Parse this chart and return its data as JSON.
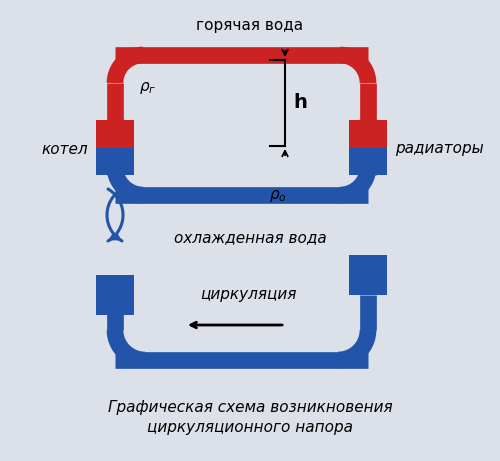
{
  "bg_color": "#dce0e8",
  "red_color": "#cc2222",
  "blue_color": "#2255aa",
  "line_width": 12,
  "title_line1": "Графическая схема возникновения",
  "title_line2": "циркуляционного напора",
  "label_hot": "горячая вода",
  "label_cold": "охлажденная вода",
  "label_boiler": "котел",
  "label_radiators": "радиаторы",
  "label_rho_g": "ρг",
  "label_rho_o": "ρо",
  "label_h": "h",
  "label_circ": "циркуляция"
}
